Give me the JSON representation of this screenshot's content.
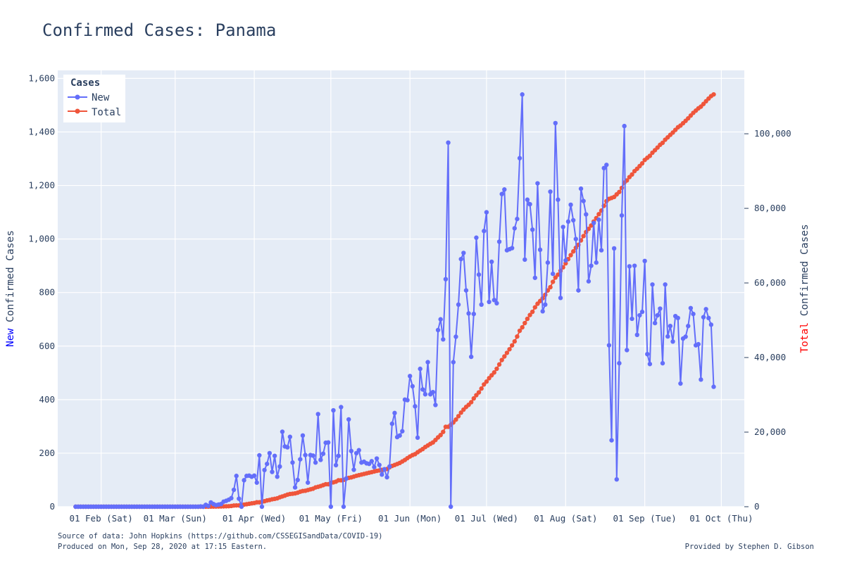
{
  "chart_data": {
    "type": "line",
    "title": "Confirmed Cases: Panama",
    "ylabel_left": {
      "prefix": "New",
      "rest": " Confirmed Cases"
    },
    "ylabel_right": {
      "prefix": "Total",
      "rest": " Confirmed Cases"
    },
    "colors": {
      "new": "#636efa",
      "total": "#ef553b",
      "left_prefix": "#0000ff",
      "right_prefix": "#ff0000"
    },
    "x_range": [
      "2020-01-15",
      "2020-10-10"
    ],
    "x_ticks": [
      {
        "date": "2020-02-01",
        "label": "01 Feb (Sat)"
      },
      {
        "date": "2020-03-01",
        "label": "01 Mar (Sun)"
      },
      {
        "date": "2020-04-01",
        "label": "01 Apr (Wed)"
      },
      {
        "date": "2020-05-01",
        "label": "01 May (Fri)"
      },
      {
        "date": "2020-06-01",
        "label": "01 Jun (Mon)"
      },
      {
        "date": "2020-07-01",
        "label": "01 Jul (Wed)"
      },
      {
        "date": "2020-08-01",
        "label": "01 Aug (Sat)"
      },
      {
        "date": "2020-09-01",
        "label": "01 Sep (Tue)"
      },
      {
        "date": "2020-10-01",
        "label": "01 Oct (Thu)"
      }
    ],
    "y_left": {
      "range": [
        0,
        1630
      ],
      "ticks": [
        0,
        200,
        400,
        600,
        800,
        1000,
        1200,
        1400,
        1600
      ],
      "tick_labels": [
        "0",
        "200",
        "400",
        "600",
        "800",
        "1,000",
        "1,200",
        "1,400",
        "1,600"
      ]
    },
    "y_right": {
      "range": [
        0,
        117000
      ],
      "ticks": [
        0,
        20000,
        40000,
        60000,
        80000,
        100000
      ],
      "tick_labels": [
        "0",
        "20,000",
        "40,000",
        "60,000",
        "80,000",
        "100,000"
      ]
    },
    "legend": {
      "title": "Cases",
      "placement": "top-left"
    },
    "series": [
      {
        "name": "New",
        "axis": "left",
        "start_date": "2020-01-22",
        "values": [
          0,
          0,
          0,
          0,
          0,
          0,
          0,
          0,
          0,
          0,
          0,
          0,
          0,
          0,
          0,
          0,
          0,
          0,
          0,
          0,
          0,
          0,
          0,
          0,
          0,
          0,
          0,
          0,
          0,
          0,
          0,
          0,
          0,
          0,
          0,
          0,
          0,
          0,
          0,
          0,
          0,
          0,
          0,
          0,
          0,
          0,
          0,
          0,
          0,
          1,
          0,
          7,
          3,
          16,
          10,
          6,
          8,
          10,
          19,
          22,
          26,
          32,
          63,
          115,
          30,
          0,
          99,
          115,
          116,
          112,
          116,
          90,
          192,
          0,
          137,
          160,
          200,
          130,
          190,
          112,
          150,
          280,
          225,
          222,
          261,
          165,
          72,
          100,
          177,
          266,
          193,
          90,
          193,
          191,
          165,
          346,
          175,
          198,
          239,
          240,
          0,
          360,
          155,
          190,
          372,
          0,
          105,
          326,
          208,
          138,
          200,
          211,
          165,
          168,
          162,
          160,
          170,
          148,
          180,
          156,
          120,
          140,
          110,
          150,
          310,
          350,
          260,
          266,
          282,
          400,
          398,
          488,
          450,
          375,
          258,
          515,
          438,
          420,
          540,
          420,
          428,
          380,
          660,
          700,
          625,
          850,
          1360,
          0,
          540,
          635,
          755,
          925,
          948,
          808,
          722,
          560,
          720,
          1005,
          867,
          755,
          1030,
          1100,
          765,
          915,
          772,
          760,
          990,
          1168,
          1185,
          958,
          962,
          966,
          1040,
          1075,
          1302,
          1540,
          923,
          1147,
          1130,
          1035,
          855,
          1208,
          960,
          730,
          755,
          912,
          1177,
          870,
          1433,
          1147,
          780,
          1045,
          920,
          1065,
          1128,
          1070,
          1000,
          808,
          1188,
          1142,
          1092,
          842,
          900,
          1060,
          912,
          1072,
          958,
          1265,
          1277,
          603,
          248,
          965,
          102,
          536,
          1088,
          1422,
          585,
          898,
          702,
          900,
          642,
          715,
          728,
          918,
          570,
          533,
          830,
          686,
          715,
          740,
          536,
          830,
          636,
          675,
          617,
          712,
          705,
          460,
          628,
          635,
          675,
          742,
          720,
          603,
          607,
          475,
          708,
          738,
          705,
          680,
          448
        ]
      },
      {
        "name": "Total",
        "axis": "right",
        "start_date": "2020-01-22",
        "values": [
          0,
          0,
          0,
          0,
          0,
          0,
          0,
          0,
          0,
          0,
          0,
          0,
          0,
          0,
          0,
          0,
          0,
          0,
          0,
          0,
          0,
          0,
          0,
          0,
          0,
          0,
          0,
          0,
          0,
          0,
          0,
          0,
          0,
          0,
          0,
          0,
          0,
          0,
          0,
          0,
          0,
          0,
          0,
          0,
          0,
          0,
          0,
          0,
          0,
          1,
          1,
          8,
          11,
          27,
          36,
          43,
          55,
          69,
          86,
          109,
          137,
          200,
          313,
          345,
          345,
          443,
          558,
          674,
          786,
          901,
          989,
          1181,
          1181,
          1317,
          1475,
          1673,
          1801,
          1988,
          2100,
          2249,
          2528,
          2752,
          2974,
          3234,
          3400,
          3472,
          3574,
          3751,
          4016,
          4210,
          4273,
          4467,
          4658,
          4821,
          5166,
          5338,
          5538,
          5779,
          6021,
          6021,
          6378,
          6532,
          6720,
          7090,
          7090,
          7197,
          7523,
          7731,
          7868,
          8070,
          8282,
          8448,
          8616,
          8783,
          8944,
          9118,
          9268,
          9449,
          9606,
          9726,
          9867,
          9977,
          10116,
          10577,
          10926,
          11183,
          11447,
          11728,
          12131,
          12531,
          13018,
          13463,
          13837,
          14095,
          14609,
          15044,
          15463,
          16004,
          16425,
          16854,
          17233,
          17889,
          18586,
          19211,
          20059,
          21418,
          21422,
          21962,
          22597,
          23351,
          24274,
          25222,
          26030,
          26752,
          27314,
          28030,
          29037,
          29905,
          30658,
          31686,
          32785,
          33550,
          34463,
          35237,
          35995,
          36983,
          38149,
          39334,
          40291,
          41251,
          42216,
          43257,
          44332,
          45633,
          47173,
          48096,
          49243,
          50373,
          51408,
          52261,
          53468,
          54426,
          55153,
          55906,
          56817,
          57993,
          58864,
          60296,
          61442,
          62223,
          63269,
          64191,
          65256,
          66383,
          67453,
          68456,
          69424,
          70231,
          71418,
          72560,
          73651,
          74492,
          75394,
          76464,
          77377,
          78446,
          79402,
          80665,
          81940,
          82543,
          82790,
          83054,
          83754,
          84392,
          85480,
          86900,
          87485,
          88381,
          89082,
          89982,
          90624,
          91337,
          92065,
          92982,
          93552,
          94084,
          94914,
          95596,
          96305,
          97045,
          97578,
          98407,
          99042,
          99715,
          100330,
          101041,
          101745,
          102204,
          102832,
          103466,
          104138,
          104879,
          105600,
          106203,
          106810,
          107284,
          107990,
          108726,
          109430,
          110108,
          110555
        ]
      }
    ],
    "footer": {
      "source": "Source of data: John Hopkins (https://github.com/CSSEGISandData/COVID-19)",
      "produced": "Produced on Mon, Sep 28, 2020 at 17:15 Eastern.",
      "credit": "Provided by Stephen D. Gibson"
    }
  }
}
